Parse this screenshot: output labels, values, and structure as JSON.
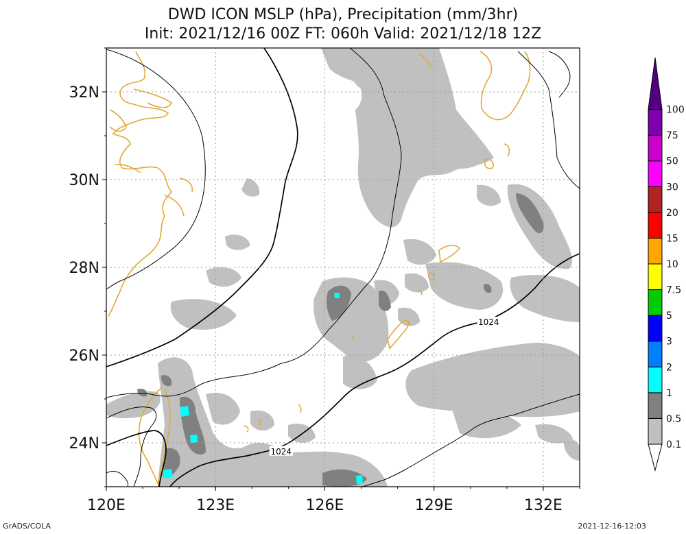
{
  "chart_data": {
    "type": "map",
    "title": "DWD ICON MSLP (hPa), Precipitation (mm/3hr)",
    "subtitle": "Init: 2021/12/16 00Z  FT: 060h  Valid: 2021/12/18 12Z",
    "x_ticks": [
      {
        "value": 120,
        "label": "120E"
      },
      {
        "value": 123,
        "label": "123E"
      },
      {
        "value": 126,
        "label": "126E"
      },
      {
        "value": 129,
        "label": "129E"
      },
      {
        "value": 132,
        "label": "132E"
      }
    ],
    "y_ticks": [
      {
        "value": 24,
        "label": "24N"
      },
      {
        "value": 26,
        "label": "26N"
      },
      {
        "value": 28,
        "label": "28N"
      },
      {
        "value": 30,
        "label": "30N"
      },
      {
        "value": 32,
        "label": "32N"
      }
    ],
    "xlim": [
      120,
      133
    ],
    "ylim": [
      23,
      33
    ],
    "grid": true,
    "colorbar": {
      "labels": [
        "0.1",
        "0.5",
        "1",
        "2",
        "3",
        "5",
        "7.5",
        "10",
        "15",
        "20",
        "30",
        "50",
        "75",
        "100"
      ],
      "colors": [
        "#c0c0c0",
        "#808080",
        "#00ffff",
        "#0080ff",
        "#0000ff",
        "#00cc00",
        "#ffff00",
        "#ffa500",
        "#ff0000",
        "#b22222",
        "#ff00ff",
        "#cc00cc",
        "#8000b0",
        "#500080"
      ]
    },
    "contour_labels": [
      {
        "text": "1024",
        "lon": 130.5,
        "lat": 26.75
      },
      {
        "text": "1024",
        "lon": 124.8,
        "lat": 23.8
      }
    ],
    "precip_colors": {
      "light": "#c0c0c0",
      "moderate": "#808080",
      "heavy": "#00ffff"
    },
    "coast_color": "#e2a836"
  },
  "footer": {
    "left": "GrADS/COLA",
    "right": "2021-12-16-12:03"
  }
}
